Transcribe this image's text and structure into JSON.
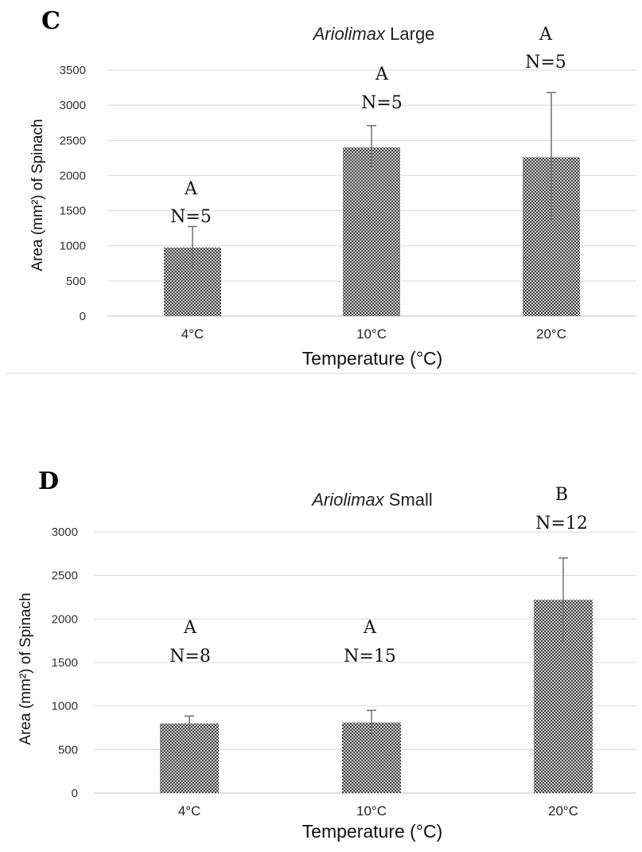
{
  "chart_data": [
    {
      "type": "bar",
      "panel": "C",
      "title_italic": "Ariolimax",
      "title_rest": " Large",
      "xlabel": "Temperature (°C)",
      "ylabel": "Area (mm²) of Spinach",
      "ylim": [
        0,
        3500
      ],
      "yticks": [
        0,
        500,
        1000,
        1500,
        2000,
        2500,
        3000,
        3500
      ],
      "ytick_labels": [
        "0",
        "500",
        "1000",
        "1500",
        "2000",
        "2500",
        "3000",
        "3500"
      ],
      "categories": [
        "4°C",
        "10°C",
        "20°C"
      ],
      "values": [
        975,
        2400,
        2260
      ],
      "errors": [
        300,
        310,
        920
      ],
      "group_letters": [
        "A",
        "A",
        "A"
      ],
      "n_labels": [
        "N=5",
        "N=5",
        "N=5"
      ],
      "grid": true,
      "bar_pattern": "checkered dark gray"
    },
    {
      "type": "bar",
      "panel": "D",
      "title_italic": "Ariolimax",
      "title_rest": " Small",
      "xlabel": "Temperature (°C)",
      "ylabel": "Area (mm²) of Spinach",
      "ylim": [
        0,
        3000
      ],
      "yticks": [
        0,
        500,
        1000,
        1500,
        2000,
        2500,
        3000
      ],
      "ytick_labels": [
        "0",
        "500",
        "1000",
        "1500",
        "2000",
        "2500",
        "3000"
      ],
      "categories": [
        "4°C",
        "10°C",
        "20°C"
      ],
      "values": [
        800,
        810,
        2220
      ],
      "errors": [
        85,
        140,
        480
      ],
      "group_letters": [
        "A",
        "A",
        "B"
      ],
      "n_labels": [
        "N=8",
        "N=15",
        "N=12"
      ],
      "grid": true,
      "bar_pattern": "checkered dark gray"
    }
  ],
  "colors": {
    "bar_dark": "#3a3a3a",
    "bar_light": "#d8d8d8",
    "grid": "#d9d9d9",
    "error_bar": "#707070"
  }
}
